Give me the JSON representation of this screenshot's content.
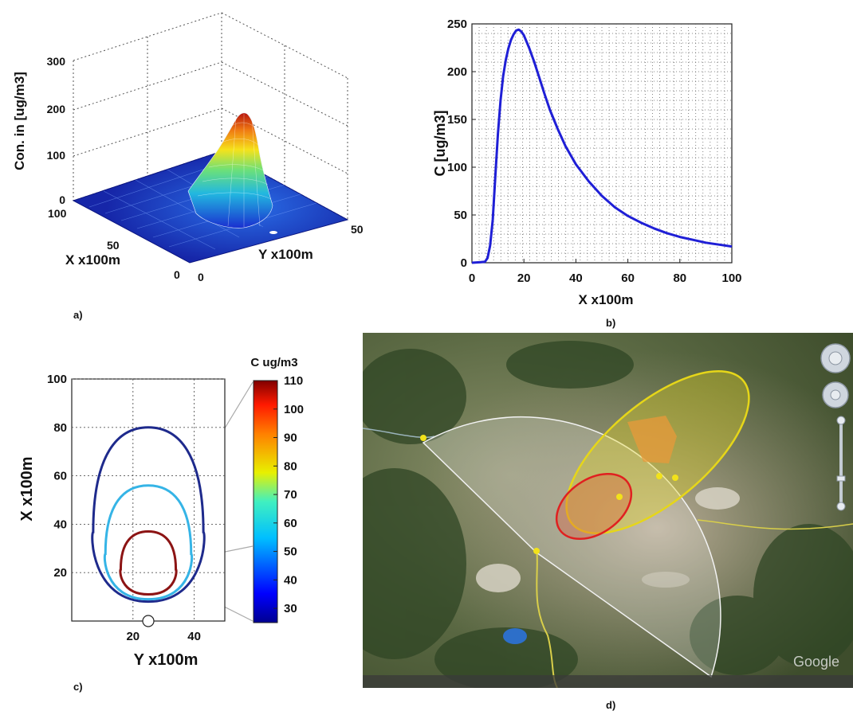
{
  "chart_data": [
    {
      "id": "a",
      "type": "surface",
      "zlabel": "Con. in [ug/m3]",
      "xlabel": "X x100m",
      "ylabel": "Y x100m",
      "zticks": [
        "0",
        "100",
        "200",
        "300"
      ],
      "xticks": [
        "0",
        "50",
        "100"
      ],
      "yticks": [
        "0",
        "50"
      ],
      "zlim": [
        0,
        300
      ],
      "xlim": [
        0,
        100
      ],
      "ylim": [
        0,
        50
      ],
      "peak": {
        "x": 18,
        "y": 25,
        "z": 244
      },
      "colormap": "jet",
      "grid": true
    },
    {
      "id": "b",
      "type": "line",
      "xlabel": "X x100m",
      "ylabel": "C [ug/m3]",
      "xlim": [
        0,
        100
      ],
      "ylim": [
        0,
        250
      ],
      "xticks": [
        "0",
        "20",
        "40",
        "60",
        "80",
        "100"
      ],
      "yticks": [
        "0",
        "50",
        "100",
        "150",
        "200",
        "250"
      ],
      "grid": true,
      "series": [
        {
          "color": "#1f1fd6",
          "x": [
            0,
            3,
            5,
            6,
            7,
            8,
            9,
            10,
            11,
            12,
            13,
            14,
            15,
            16,
            17,
            18,
            19,
            20,
            22,
            24,
            26,
            28,
            30,
            33,
            36,
            40,
            45,
            50,
            55,
            60,
            65,
            70,
            75,
            80,
            85,
            90,
            95,
            100
          ],
          "y": [
            0,
            0.5,
            1,
            5,
            18,
            45,
            90,
            135,
            170,
            195,
            212,
            224,
            233,
            239,
            243,
            244,
            242,
            238,
            225,
            210,
            193,
            176,
            160,
            140,
            122,
            103,
            85,
            70,
            58,
            49,
            42,
            36,
            31,
            27,
            24,
            21,
            19,
            17
          ]
        }
      ]
    },
    {
      "id": "c",
      "type": "contour",
      "xlabel": "Y x100m",
      "ylabel": "X x100m",
      "xticks": [
        "20",
        "40"
      ],
      "yticks": [
        "20",
        "40",
        "60",
        "80",
        "100"
      ],
      "xlim": [
        0,
        50
      ],
      "ylim": [
        0,
        100
      ],
      "grid": true,
      "colorbar_title": "C ug/m3",
      "colorbar_ticks": [
        "30",
        "40",
        "50",
        "60",
        "70",
        "80",
        "90",
        "100",
        "110"
      ],
      "colorbar_range": [
        25,
        110
      ],
      "contours": [
        {
          "level": 30,
          "color": "#1e2a8c",
          "y_bottom": 8,
          "y_top": 80,
          "half_width": 18
        },
        {
          "level": 50,
          "color": "#35b4e6",
          "y_bottom": 9,
          "y_top": 56,
          "half_width": 14
        },
        {
          "level": 110,
          "color": "#8c1414",
          "y_bottom": 11,
          "y_top": 37,
          "half_width": 9
        }
      ],
      "source_y": 25
    }
  ],
  "labels": {
    "a": "a)",
    "b": "b)",
    "c": "c)",
    "d": "d)"
  },
  "map": {
    "logo": "Google",
    "colors": {
      "yellow_zone": "#e6d619",
      "red_zone": "#e02020",
      "orange_fill": "#e89a3a",
      "sector": "#ffffff"
    }
  }
}
